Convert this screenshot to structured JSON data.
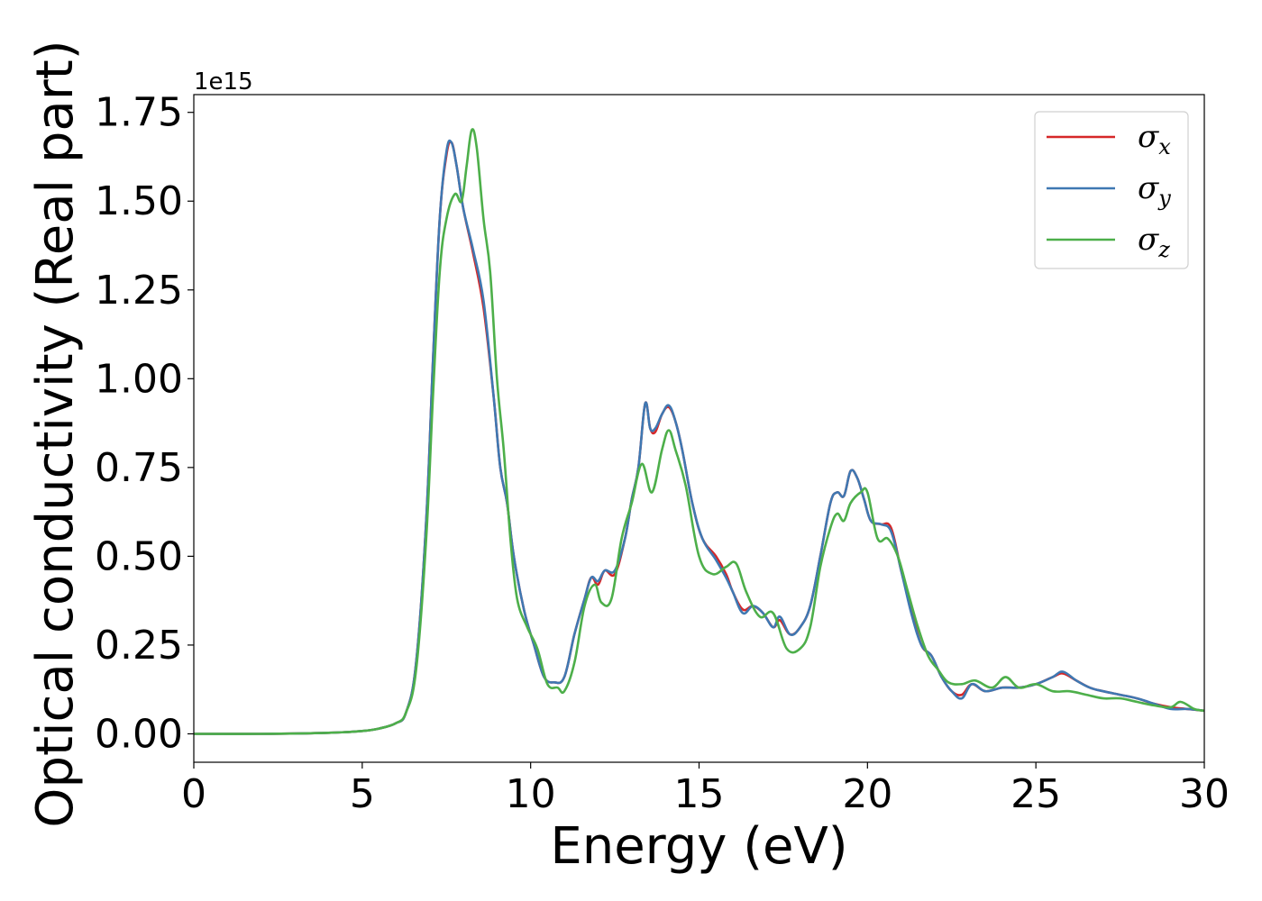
{
  "chart_data": {
    "type": "line",
    "title": "",
    "xlabel": "Energy (eV)",
    "ylabel": "Optical conductivity (Real part)",
    "y_offset_label": "1e15",
    "y_multiplier": 1000000000000000.0,
    "xlim": [
      0,
      30
    ],
    "ylim": [
      -0.08,
      1.8
    ],
    "x_ticks": [
      0,
      5,
      10,
      15,
      20,
      25,
      30
    ],
    "x_tick_labels": [
      "0",
      "5",
      "10",
      "15",
      "20",
      "25",
      "30"
    ],
    "y_ticks": [
      0.0,
      0.25,
      0.5,
      0.75,
      1.0,
      1.25,
      1.5,
      1.75
    ],
    "y_tick_labels": [
      "0.00",
      "0.25",
      "0.50",
      "0.75",
      "1.00",
      "1.25",
      "1.50",
      "1.75"
    ],
    "grid": false,
    "legend_position": "top-right",
    "series": [
      {
        "name": "σx",
        "symbol": "σ",
        "subscript": "x",
        "color": "#d62728",
        "x": [
          0,
          2,
          4,
          5,
          5.5,
          6,
          6.3,
          6.6,
          6.9,
          7.1,
          7.3,
          7.5,
          7.65,
          7.8,
          8.0,
          8.3,
          8.6,
          8.9,
          9.1,
          9.3,
          9.5,
          9.8,
          10.1,
          10.4,
          10.7,
          11.0,
          11.3,
          11.6,
          11.8,
          12.0,
          12.2,
          12.5,
          12.8,
          13.0,
          13.2,
          13.4,
          13.55,
          13.7,
          13.9,
          14.1,
          14.3,
          14.5,
          14.8,
          15.1,
          15.5,
          15.8,
          16.0,
          16.3,
          16.6,
          16.9,
          17.2,
          17.4,
          17.7,
          18.0,
          18.3,
          18.6,
          18.9,
          19.1,
          19.3,
          19.5,
          19.7,
          19.9,
          20.1,
          20.4,
          20.7,
          21.0,
          21.3,
          21.6,
          21.9,
          22.2,
          22.5,
          22.8,
          23.1,
          23.5,
          24.0,
          24.5,
          25.0,
          25.5,
          25.8,
          26.2,
          26.6,
          27.0,
          27.5,
          28.0,
          28.5,
          29.0,
          29.5,
          30.0
        ],
        "y": [
          0.0,
          0.0,
          0.003,
          0.008,
          0.015,
          0.03,
          0.06,
          0.2,
          0.6,
          1.05,
          1.45,
          1.63,
          1.665,
          1.6,
          1.48,
          1.35,
          1.2,
          0.95,
          0.75,
          0.65,
          0.5,
          0.35,
          0.25,
          0.16,
          0.145,
          0.16,
          0.28,
          0.38,
          0.44,
          0.42,
          0.46,
          0.45,
          0.55,
          0.66,
          0.75,
          0.93,
          0.86,
          0.85,
          0.9,
          0.92,
          0.88,
          0.8,
          0.65,
          0.55,
          0.5,
          0.45,
          0.4,
          0.35,
          0.36,
          0.34,
          0.3,
          0.32,
          0.28,
          0.3,
          0.36,
          0.5,
          0.65,
          0.68,
          0.67,
          0.74,
          0.72,
          0.66,
          0.6,
          0.59,
          0.58,
          0.46,
          0.35,
          0.25,
          0.22,
          0.16,
          0.12,
          0.11,
          0.14,
          0.12,
          0.13,
          0.13,
          0.14,
          0.16,
          0.17,
          0.15,
          0.13,
          0.12,
          0.11,
          0.1,
          0.085,
          0.075,
          0.07,
          0.065
        ]
      },
      {
        "name": "σy",
        "symbol": "σ",
        "subscript": "y",
        "color": "#3f78b2",
        "x": [
          0,
          2,
          4,
          5,
          5.5,
          6,
          6.3,
          6.6,
          6.9,
          7.1,
          7.3,
          7.5,
          7.65,
          7.8,
          8.0,
          8.3,
          8.6,
          8.9,
          9.1,
          9.3,
          9.5,
          9.8,
          10.1,
          10.4,
          10.7,
          11.0,
          11.3,
          11.6,
          11.8,
          12.0,
          12.2,
          12.5,
          12.8,
          13.0,
          13.2,
          13.4,
          13.55,
          13.7,
          13.9,
          14.1,
          14.3,
          14.5,
          14.8,
          15.1,
          15.5,
          15.8,
          16.0,
          16.3,
          16.6,
          16.9,
          17.2,
          17.4,
          17.7,
          18.0,
          18.3,
          18.6,
          18.9,
          19.1,
          19.3,
          19.5,
          19.7,
          19.9,
          20.1,
          20.4,
          20.7,
          21.0,
          21.3,
          21.6,
          21.9,
          22.2,
          22.5,
          22.8,
          23.1,
          23.5,
          24.0,
          24.5,
          25.0,
          25.5,
          25.8,
          26.2,
          26.6,
          27.0,
          27.5,
          28.0,
          28.5,
          29.0,
          29.5,
          30.0
        ],
        "y": [
          0.0,
          0.0,
          0.003,
          0.008,
          0.015,
          0.03,
          0.06,
          0.2,
          0.6,
          1.05,
          1.45,
          1.64,
          1.665,
          1.6,
          1.48,
          1.36,
          1.22,
          0.95,
          0.75,
          0.65,
          0.5,
          0.35,
          0.25,
          0.16,
          0.145,
          0.16,
          0.28,
          0.38,
          0.44,
          0.43,
          0.46,
          0.46,
          0.55,
          0.66,
          0.75,
          0.93,
          0.86,
          0.86,
          0.9,
          0.925,
          0.88,
          0.8,
          0.65,
          0.55,
          0.49,
          0.44,
          0.4,
          0.34,
          0.36,
          0.34,
          0.3,
          0.33,
          0.28,
          0.3,
          0.36,
          0.5,
          0.65,
          0.68,
          0.67,
          0.74,
          0.72,
          0.66,
          0.6,
          0.59,
          0.57,
          0.46,
          0.34,
          0.25,
          0.22,
          0.16,
          0.12,
          0.1,
          0.14,
          0.12,
          0.13,
          0.13,
          0.14,
          0.16,
          0.175,
          0.15,
          0.13,
          0.12,
          0.11,
          0.1,
          0.085,
          0.07,
          0.07,
          0.065
        ]
      },
      {
        "name": "σz",
        "symbol": "σ",
        "subscript": "z",
        "color": "#4daf4a",
        "x": [
          0,
          2,
          4,
          5,
          5.5,
          6,
          6.3,
          6.6,
          6.9,
          7.1,
          7.3,
          7.5,
          7.75,
          7.95,
          8.1,
          8.25,
          8.4,
          8.6,
          8.8,
          9.0,
          9.2,
          9.4,
          9.6,
          9.9,
          10.2,
          10.5,
          10.8,
          11.0,
          11.3,
          11.6,
          11.9,
          12.1,
          12.4,
          12.7,
          13.0,
          13.3,
          13.6,
          13.9,
          14.1,
          14.3,
          14.6,
          15.0,
          15.4,
          15.8,
          16.1,
          16.4,
          16.8,
          17.2,
          17.6,
          18.0,
          18.3,
          18.6,
          18.9,
          19.1,
          19.3,
          19.5,
          19.8,
          20.0,
          20.3,
          20.6,
          20.9,
          21.2,
          21.5,
          21.8,
          22.1,
          22.4,
          22.8,
          23.2,
          23.7,
          24.1,
          24.5,
          25.0,
          25.5,
          26.0,
          26.5,
          27.0,
          27.5,
          28.0,
          28.5,
          29.0,
          29.3,
          29.7,
          30.0
        ],
        "y": [
          0.0,
          0.0,
          0.003,
          0.008,
          0.015,
          0.03,
          0.06,
          0.18,
          0.55,
          0.95,
          1.3,
          1.45,
          1.52,
          1.5,
          1.6,
          1.7,
          1.65,
          1.45,
          1.3,
          1.0,
          0.8,
          0.55,
          0.38,
          0.3,
          0.24,
          0.14,
          0.13,
          0.12,
          0.2,
          0.36,
          0.42,
          0.37,
          0.38,
          0.55,
          0.65,
          0.76,
          0.68,
          0.8,
          0.855,
          0.8,
          0.7,
          0.5,
          0.45,
          0.47,
          0.48,
          0.4,
          0.33,
          0.34,
          0.24,
          0.24,
          0.3,
          0.47,
          0.58,
          0.62,
          0.6,
          0.65,
          0.68,
          0.68,
          0.55,
          0.55,
          0.5,
          0.4,
          0.3,
          0.22,
          0.18,
          0.145,
          0.14,
          0.15,
          0.13,
          0.16,
          0.13,
          0.14,
          0.12,
          0.12,
          0.11,
          0.1,
          0.1,
          0.09,
          0.08,
          0.075,
          0.09,
          0.07,
          0.065
        ]
      }
    ]
  }
}
